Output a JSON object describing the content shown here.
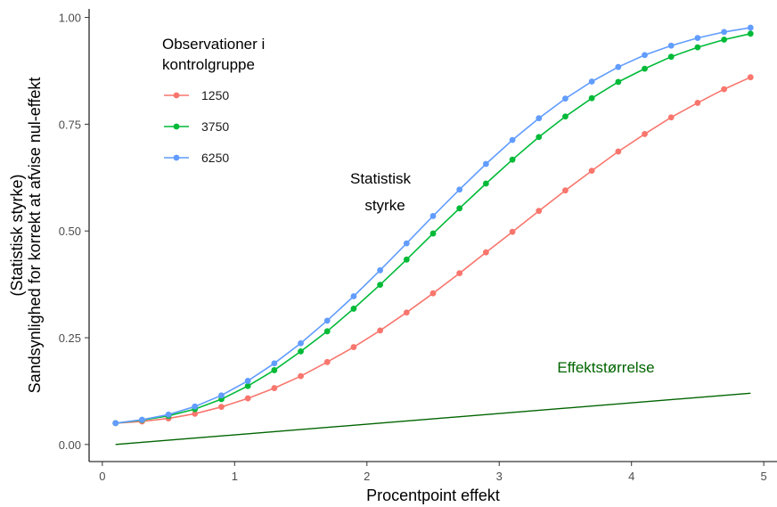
{
  "chart_data": {
    "type": "line",
    "xlabel": "Procentpoint effekt",
    "ylabel_lines": [
      "(Statistisk styrke)",
      "Sandsynlighed for korrekt at afvise nul-effekt"
    ],
    "xlim": [
      -0.1,
      5.1
    ],
    "ylim": [
      -0.04,
      1.02
    ],
    "x_ticks": [
      0,
      1,
      2,
      3,
      4,
      5
    ],
    "x_tick_labels": [
      "0",
      "1",
      "2",
      "3",
      "4",
      "5"
    ],
    "y_ticks": [
      0,
      0.25,
      0.5,
      0.75,
      1.0
    ],
    "y_tick_labels": [
      "0.00",
      "0.25",
      "0.50",
      "0.75",
      "1.00"
    ],
    "grid": false,
    "legend": {
      "title_lines": [
        "Observationer i",
        "kontrolgruppe"
      ],
      "position": "top-left"
    },
    "x": [
      0.1,
      0.3,
      0.5,
      0.7,
      0.9,
      1.1,
      1.3,
      1.5,
      1.7,
      1.9,
      2.1,
      2.3,
      2.5,
      2.7,
      2.9,
      3.1,
      3.3,
      3.5,
      3.7,
      3.9,
      4.1,
      4.3,
      4.5,
      4.7,
      4.9
    ],
    "series": [
      {
        "name": "1250",
        "color": "#F8766D",
        "values": [
          0.05,
          0.054,
          0.061,
          0.072,
          0.088,
          0.108,
          0.132,
          0.16,
          0.193,
          0.228,
          0.267,
          0.309,
          0.354,
          0.401,
          0.45,
          0.498,
          0.547,
          0.595,
          0.641,
          0.686,
          0.727,
          0.766,
          0.8,
          0.832,
          0.86
        ]
      },
      {
        "name": "3750",
        "color": "#00BA38",
        "values": [
          0.05,
          0.057,
          0.067,
          0.083,
          0.106,
          0.137,
          0.174,
          0.218,
          0.265,
          0.318,
          0.374,
          0.433,
          0.494,
          0.553,
          0.611,
          0.667,
          0.72,
          0.768,
          0.811,
          0.849,
          0.88,
          0.908,
          0.93,
          0.948,
          0.962
        ]
      },
      {
        "name": "6250",
        "color": "#619CFF",
        "values": [
          0.05,
          0.058,
          0.07,
          0.089,
          0.115,
          0.149,
          0.19,
          0.237,
          0.29,
          0.347,
          0.408,
          0.471,
          0.535,
          0.597,
          0.657,
          0.713,
          0.764,
          0.81,
          0.85,
          0.884,
          0.912,
          0.934,
          0.952,
          0.966,
          0.976
        ]
      }
    ],
    "reference_line": {
      "label": "Effektstørrelse",
      "color": "#006400",
      "x": [
        0.1,
        4.9
      ],
      "values": [
        0.0,
        0.12
      ]
    },
    "annotations": [
      {
        "text_lines": [
          "Statistisk",
          "styrke"
        ],
        "color": "#000000"
      }
    ]
  }
}
